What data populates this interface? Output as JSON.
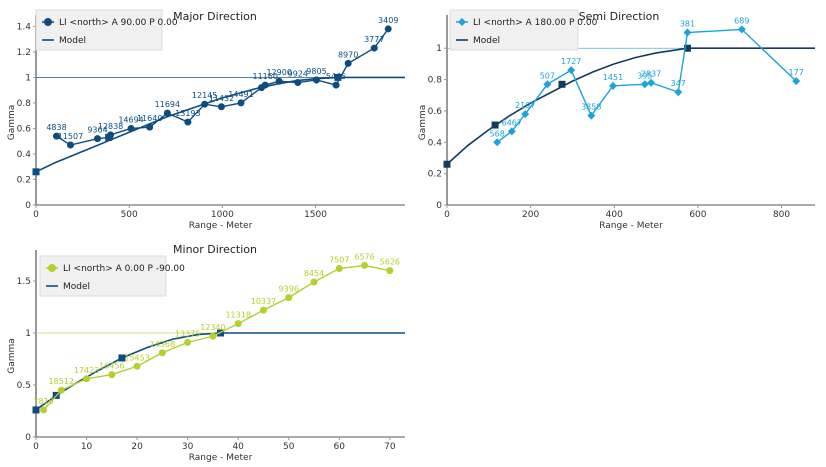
{
  "chart_data": [
    {
      "type": "line",
      "title": "Major Direction",
      "xlabel": "Range - Meter",
      "ylabel": "Gamma",
      "xlim": [
        0,
        1980
      ],
      "ylim": [
        0,
        1.45
      ],
      "x_ticks": [
        0,
        500,
        1000,
        1500
      ],
      "x_tick_labels": [
        "0",
        "500",
        "1000",
        "1500"
      ],
      "y_ticks": [
        0,
        0.2,
        0.4,
        0.6,
        0.8,
        1,
        1.2,
        1.4
      ],
      "y_tick_labels": [
        "0",
        "0.2",
        "0.4",
        "0.6",
        "0.8",
        "1",
        "1.2",
        "1.4"
      ],
      "sill": 1,
      "legend": [
        "LI <north> A 90.00 P 0.00",
        "Model"
      ],
      "legend_position": "top-left",
      "experimental_color": "#0d4c80",
      "model_color": "#0d4c80",
      "marker": "circle",
      "experimental": {
        "x": [
          110,
          185,
          330,
          395,
          400,
          510,
          610,
          705,
          815,
          905,
          995,
          1100,
          1210,
          1230,
          1305,
          1405,
          1505,
          1610,
          1675,
          1815,
          1890
        ],
        "y": [
          0.54,
          0.47,
          0.52,
          0.53,
          0.55,
          0.6,
          0.61,
          0.72,
          0.65,
          0.79,
          0.77,
          0.8,
          0.92,
          0.94,
          0.97,
          0.96,
          0.98,
          0.94,
          1.11,
          1.23,
          1.38
        ],
        "labels": [
          "4838",
          "11507",
          "9364",
          "",
          "12838",
          "14694",
          "11640",
          "11694",
          "13193",
          "12145",
          "11432",
          "14491",
          "",
          "11160",
          "12900",
          "9924",
          "9805",
          "5445",
          "8970",
          "3777",
          "3409"
        ]
      },
      "model": {
        "x": [
          0,
          100,
          200,
          300,
          400,
          500,
          600,
          700,
          800,
          900,
          1000,
          1100,
          1200,
          1300,
          1400,
          1500,
          1620,
          1980
        ],
        "y": [
          0.26,
          0.33,
          0.39,
          0.45,
          0.51,
          0.57,
          0.63,
          0.69,
          0.74,
          0.79,
          0.84,
          0.88,
          0.92,
          0.95,
          0.975,
          0.99,
          1.0,
          1.0
        ]
      },
      "model_markers": {
        "x": [
          0,
          390,
          1620
        ],
        "y": [
          0.26,
          0.53,
          1.0
        ]
      }
    },
    {
      "type": "line",
      "title": "Semi Direction",
      "xlabel": "Range - Meter",
      "ylabel": "Gamma",
      "xlim": [
        0,
        880
      ],
      "ylim": [
        0,
        1.18
      ],
      "x_ticks": [
        0,
        200,
        400,
        600,
        800
      ],
      "x_tick_labels": [
        "0",
        "200",
        "400",
        "600",
        "800"
      ],
      "y_ticks": [
        0,
        0.2,
        0.4,
        0.6,
        0.8,
        1
      ],
      "y_tick_labels": [
        "0",
        "0.2",
        "0.4",
        "0.6",
        "0.8",
        "1"
      ],
      "sill": 1,
      "legend": [
        "LI <north> A 180.00 P 0.00",
        "Model"
      ],
      "legend_position": "top-left",
      "experimental_color": "#1ca3dc",
      "model_color": "#163a5e",
      "marker": "diamond",
      "experimental": {
        "x": [
          120,
          155,
          187,
          240,
          297,
          345,
          397,
          473,
          488,
          553,
          575,
          705,
          835
        ],
        "y": [
          0.4,
          0.47,
          0.58,
          0.77,
          0.86,
          0.57,
          0.76,
          0.77,
          0.78,
          0.72,
          1.1,
          1.12,
          0.79
        ],
        "labels": [
          "568",
          "6467",
          "2197",
          "507",
          "1727",
          "3858",
          "1451",
          "395",
          "2837",
          "347",
          "381",
          "689",
          "177"
        ]
      },
      "model": {
        "x": [
          0,
          50,
          100,
          150,
          200,
          250,
          300,
          350,
          400,
          450,
          500,
          550,
          575,
          880
        ],
        "y": [
          0.26,
          0.38,
          0.48,
          0.57,
          0.65,
          0.72,
          0.79,
          0.85,
          0.9,
          0.94,
          0.97,
          0.99,
          1.0,
          1.0
        ]
      },
      "model_markers": {
        "x": [
          0,
          115,
          275,
          575
        ],
        "y": [
          0.26,
          0.51,
          0.77,
          1.0
        ]
      }
    },
    {
      "type": "line",
      "title": "Minor Direction",
      "xlabel": "Range - Meter",
      "ylabel": "Gamma",
      "xlim": [
        0,
        73
      ],
      "ylim": [
        0,
        1.75
      ],
      "x_ticks": [
        0,
        10,
        20,
        30,
        40,
        50,
        60,
        70
      ],
      "x_tick_labels": [
        "0",
        "10",
        "20",
        "30",
        "40",
        "50",
        "60",
        "70"
      ],
      "y_ticks": [
        0,
        0.5,
        1,
        1.5
      ],
      "y_tick_labels": [
        "0",
        "0.5",
        "1",
        "1.5"
      ],
      "sill": 1,
      "legend": [
        "LI <north> A 0.00 P -90.00",
        "Model"
      ],
      "legend_position": "top-left",
      "experimental_color": "#b5cf2c",
      "model_color": "#0d4c80",
      "marker": "circle",
      "experimental": {
        "x": [
          1.5,
          5,
          10,
          15,
          20,
          25,
          30,
          35,
          40,
          45,
          50,
          55,
          60,
          65,
          70
        ],
        "y": [
          0.26,
          0.45,
          0.56,
          0.6,
          0.68,
          0.81,
          0.91,
          0.97,
          1.09,
          1.22,
          1.34,
          1.49,
          1.62,
          1.65,
          1.6
        ],
        "labels": [
          "7810",
          "18512",
          "17423",
          "16456",
          "15453",
          "14368",
          "13375",
          "12340",
          "11318",
          "10337",
          "9396",
          "8454",
          "7507",
          "6576",
          "5626"
        ]
      },
      "model": {
        "x": [
          0,
          4,
          8,
          12,
          17,
          22,
          27,
          32,
          36.5,
          73
        ],
        "y": [
          0.26,
          0.4,
          0.52,
          0.63,
          0.76,
          0.86,
          0.94,
          0.985,
          1.0,
          1.0
        ]
      },
      "model_markers": {
        "x": [
          0,
          4,
          17,
          36.5
        ],
        "y": [
          0.26,
          0.4,
          0.76,
          1.0
        ]
      }
    }
  ]
}
